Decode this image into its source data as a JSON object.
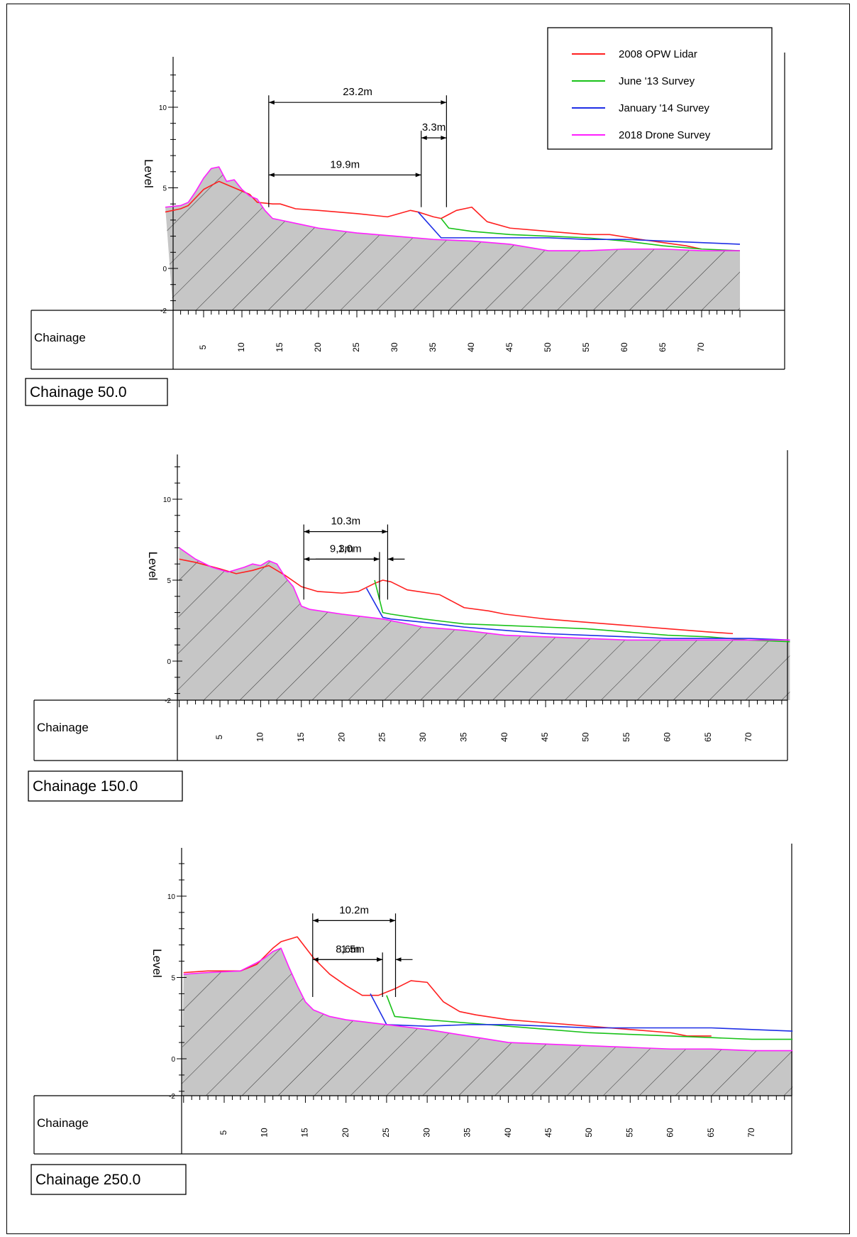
{
  "legend": {
    "entries": [
      {
        "label": "2008 OPW Lidar",
        "color": "#ff2020"
      },
      {
        "label": "June '13 Survey",
        "color": "#19c219"
      },
      {
        "label": "January '14 Survey",
        "color": "#1f2fe6"
      },
      {
        "label": "2018 Drone Survey",
        "color": "#ff1fff"
      }
    ]
  },
  "chart_data": [
    {
      "type": "line",
      "title": "Chainage 50.0",
      "xlabel": "Chainage",
      "ylabel": "Level",
      "xlim": [
        0,
        75
      ],
      "ylim": [
        -2.5,
        12.5
      ],
      "xticks": [
        "5",
        "10",
        "15",
        "20",
        "25",
        "30",
        "35",
        "40",
        "45",
        "50",
        "55",
        "60",
        "65",
        "70"
      ],
      "yticks": [
        "10",
        "5",
        "0",
        "-2"
      ],
      "grid": false,
      "legend_position": "top-right",
      "series": [
        {
          "name": "2008 OPW Lidar",
          "x": [
            0,
            2,
            3,
            5,
            7,
            9,
            11,
            12,
            14,
            15,
            17,
            20,
            25,
            29,
            32,
            33,
            35,
            36,
            38,
            40,
            42,
            45,
            50,
            55,
            58,
            62,
            65,
            68,
            70
          ],
          "y": [
            3.5,
            3.7,
            3.9,
            4.9,
            5.4,
            5.0,
            4.6,
            4.1,
            4.0,
            4.0,
            3.7,
            3.6,
            3.4,
            3.2,
            3.6,
            3.5,
            3.2,
            3.1,
            3.6,
            3.8,
            2.9,
            2.5,
            2.3,
            2.1,
            2.1,
            1.8,
            1.6,
            1.4,
            1.2
          ]
        },
        {
          "name": "June '13 Survey",
          "x": [
            36,
            37,
            40,
            45,
            50,
            55,
            60,
            65,
            70,
            75
          ],
          "y": [
            3.1,
            2.5,
            2.3,
            2.1,
            2.0,
            1.9,
            1.7,
            1.4,
            1.2,
            1.1
          ]
        },
        {
          "name": "January '14 Survey",
          "x": [
            33,
            36,
            40,
            45,
            50,
            55,
            60,
            65,
            70,
            75
          ],
          "y": [
            3.5,
            1.9,
            1.9,
            1.9,
            1.9,
            1.8,
            1.8,
            1.7,
            1.6,
            1.5
          ]
        },
        {
          "name": "2018 Drone Survey",
          "x": [
            0,
            2,
            3,
            4,
            5,
            6,
            7,
            8,
            9,
            10,
            11,
            12,
            13,
            14,
            15,
            18,
            20,
            25,
            30,
            35,
            40,
            45,
            50,
            55,
            60,
            65,
            70,
            75
          ],
          "y": [
            3.8,
            3.9,
            4.1,
            4.8,
            5.6,
            6.2,
            6.3,
            5.4,
            5.5,
            4.9,
            4.5,
            4.3,
            3.6,
            3.1,
            3.0,
            2.7,
            2.5,
            2.2,
            2.0,
            1.8,
            1.7,
            1.5,
            1.1,
            1.1,
            1.2,
            1.2,
            1.1,
            1.1
          ]
        }
      ],
      "annotations": [
        {
          "text": "23.2m",
          "from_x": 13.5,
          "to_x": 36.7,
          "y": 10.3
        },
        {
          "text": "3.3m",
          "from_x": 33.4,
          "to_x": 36.7,
          "y": 8.1
        },
        {
          "text": "19.9m",
          "from_x": 13.5,
          "to_x": 33.4,
          "y": 5.8
        }
      ]
    },
    {
      "type": "line",
      "title": "Chainage 150.0",
      "xlabel": "Chainage",
      "ylabel": "Level",
      "xlim": [
        0,
        75
      ],
      "ylim": [
        -2.5,
        12.5
      ],
      "xticks": [
        "5",
        "10",
        "15",
        "20",
        "25",
        "30",
        "35",
        "40",
        "45",
        "50",
        "55",
        "60",
        "65",
        "70"
      ],
      "yticks": [
        "10",
        "5",
        "0",
        "-2"
      ],
      "grid": false,
      "series": [
        {
          "name": "2008 OPW Lidar",
          "x": [
            0,
            2,
            5,
            7,
            9,
            11,
            13,
            15,
            17,
            20,
            22,
            24,
            25,
            26,
            28,
            32,
            35,
            38,
            40,
            45,
            50,
            55,
            60,
            65,
            68
          ],
          "y": [
            6.3,
            6.1,
            5.7,
            5.4,
            5.6,
            5.9,
            5.3,
            4.6,
            4.3,
            4.2,
            4.3,
            4.8,
            5.0,
            4.9,
            4.4,
            4.1,
            3.3,
            3.1,
            2.9,
            2.6,
            2.4,
            2.2,
            2.0,
            1.8,
            1.7
          ]
        },
        {
          "name": "June '13 Survey",
          "x": [
            24,
            25,
            26,
            30,
            35,
            40,
            45,
            50,
            55,
            60,
            65,
            70,
            75
          ],
          "y": [
            5.0,
            3.0,
            2.9,
            2.6,
            2.3,
            2.2,
            2.1,
            2.0,
            1.8,
            1.6,
            1.5,
            1.3,
            1.2
          ]
        },
        {
          "name": "January '14 Survey",
          "x": [
            23,
            25,
            26,
            30,
            35,
            40,
            45,
            50,
            55,
            60,
            65,
            70,
            75
          ],
          "y": [
            4.5,
            2.7,
            2.6,
            2.4,
            2.1,
            1.9,
            1.7,
            1.6,
            1.5,
            1.4,
            1.4,
            1.4,
            1.3
          ]
        },
        {
          "name": "2018 Drone Survey",
          "x": [
            0,
            2,
            4,
            6,
            8,
            9,
            10,
            11,
            12,
            13,
            14,
            15,
            16,
            20,
            25,
            30,
            35,
            40,
            45,
            50,
            55,
            60,
            65,
            70,
            75
          ],
          "y": [
            7.0,
            6.3,
            5.8,
            5.5,
            5.8,
            6.0,
            5.9,
            6.2,
            6.0,
            5.2,
            4.6,
            3.4,
            3.2,
            2.9,
            2.6,
            2.1,
            1.9,
            1.6,
            1.5,
            1.4,
            1.3,
            1.3,
            1.3,
            1.3,
            1.3
          ]
        }
      ],
      "annotations": [
        {
          "text": "10.3m",
          "from_x": 15.3,
          "to_x": 25.6,
          "y": 8.0
        },
        {
          "text": "9,3m",
          "from_x": 15.3,
          "to_x": 24.6,
          "y": 6.3
        },
        {
          "text": "1,0m",
          "from_x": 24.6,
          "to_x": 25.6,
          "y": 6.3
        }
      ]
    },
    {
      "type": "line",
      "title": "Chainage 250.0",
      "xlabel": "Chainage",
      "ylabel": "Level",
      "xlim": [
        0,
        75
      ],
      "ylim": [
        -2.5,
        12.5
      ],
      "xticks": [
        "5",
        "10",
        "15",
        "20",
        "25",
        "30",
        "35",
        "40",
        "45",
        "50",
        "55",
        "60",
        "65",
        "70"
      ],
      "yticks": [
        "10",
        "5",
        "0",
        "-2"
      ],
      "grid": false,
      "series": [
        {
          "name": "2008 OPW Lidar",
          "x": [
            0,
            3,
            7,
            9,
            11,
            12,
            14,
            16,
            18,
            20,
            22,
            24,
            26,
            28,
            30,
            32,
            34,
            36,
            40,
            45,
            50,
            55,
            60,
            62,
            65
          ],
          "y": [
            5.3,
            5.4,
            5.4,
            5.8,
            6.8,
            7.2,
            7.5,
            6.2,
            5.2,
            4.5,
            3.9,
            3.9,
            4.3,
            4.8,
            4.7,
            3.5,
            2.9,
            2.7,
            2.4,
            2.2,
            2.0,
            1.8,
            1.6,
            1.4,
            1.4
          ]
        },
        {
          "name": "June '13 Survey",
          "x": [
            25,
            26,
            30,
            35,
            40,
            45,
            50,
            55,
            60,
            65,
            70,
            75
          ],
          "y": [
            3.9,
            2.6,
            2.4,
            2.2,
            2.0,
            1.8,
            1.6,
            1.5,
            1.4,
            1.3,
            1.2,
            1.2
          ]
        },
        {
          "name": "January '14 Survey",
          "x": [
            23,
            25,
            30,
            35,
            40,
            45,
            50,
            55,
            60,
            65,
            70,
            75
          ],
          "y": [
            4.0,
            2.1,
            2.0,
            2.1,
            2.1,
            2.0,
            1.9,
            1.9,
            1.9,
            1.9,
            1.8,
            1.7
          ]
        },
        {
          "name": "2018 Drone Survey",
          "x": [
            0,
            3,
            7,
            9,
            10,
            11,
            12,
            13,
            14,
            15,
            16,
            18,
            20,
            25,
            30,
            35,
            40,
            45,
            50,
            55,
            60,
            65,
            70,
            75
          ],
          "y": [
            5.2,
            5.3,
            5.4,
            5.9,
            6.2,
            6.6,
            6.8,
            5.6,
            4.5,
            3.5,
            3.0,
            2.6,
            2.4,
            2.1,
            1.8,
            1.4,
            1.0,
            0.9,
            0.8,
            0.7,
            0.6,
            0.6,
            0.5,
            0.5
          ]
        }
      ],
      "annotations": [
        {
          "text": "10.2m",
          "from_x": 15.9,
          "to_x": 26.1,
          "y": 8.5
        },
        {
          "text": "8,6m",
          "from_x": 15.9,
          "to_x": 24.5,
          "y": 6.1
        },
        {
          "text": "1.5m",
          "from_x": 24.5,
          "to_x": 26.1,
          "y": 6.1
        }
      ]
    }
  ]
}
